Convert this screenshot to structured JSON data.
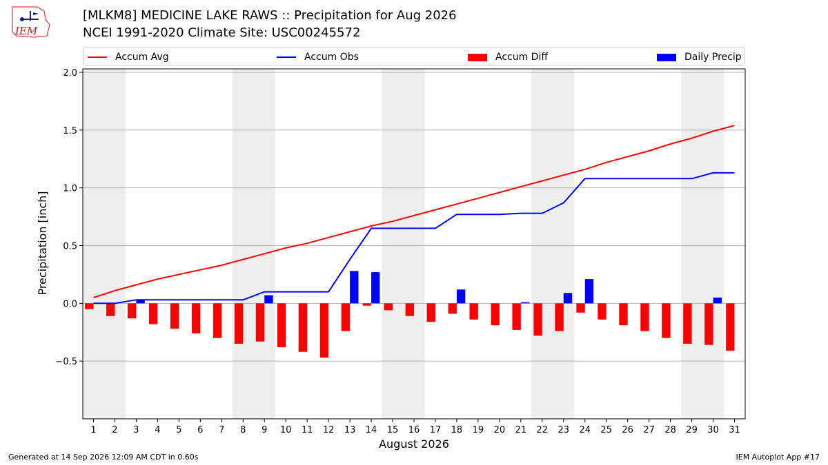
{
  "header": {
    "title_line1": "[MLKM8] MEDICINE LAKE RAWS :: Precipitation for Aug 2026",
    "title_line2": "NCEI 1991-2020 Climate Site: USC00245572",
    "logo_text": "IEM"
  },
  "footer": {
    "left": "Generated at 14 Sep 2026 12:09 AM CDT in 0.60s",
    "right": "IEM Autoplot App #17"
  },
  "colors": {
    "accum_avg": "#ff0000",
    "accum_obs": "#0000ff",
    "accum_diff": "#ff0000",
    "daily_precip": "#0000ff",
    "weekend_shade": "#eeeeee",
    "grid": "#b0b0b0"
  },
  "chart_data": {
    "type": "bar",
    "xlabel": "August 2026",
    "ylabel": "Precipitation [inch]",
    "ylim": [
      -1.0,
      2.03
    ],
    "xlim": [
      0.5,
      31.5
    ],
    "yticks": [
      -0.5,
      0.0,
      0.5,
      1.0,
      1.5,
      2.0
    ],
    "ytick_labels": [
      "−0.5",
      "0.0",
      "0.5",
      "1.0",
      "1.5",
      "2.0"
    ],
    "grid": "horizontal",
    "legend_position": "top",
    "legend": [
      "Accum Avg",
      "Accum Obs",
      "Accum Diff",
      "Daily Precip"
    ],
    "days": [
      1,
      2,
      3,
      4,
      5,
      6,
      7,
      8,
      9,
      10,
      11,
      12,
      13,
      14,
      15,
      16,
      17,
      18,
      19,
      20,
      21,
      22,
      23,
      24,
      25,
      26,
      27,
      28,
      29,
      30,
      31
    ],
    "shaded_day_ranges": [
      [
        1,
        2
      ],
      [
        8,
        9
      ],
      [
        15,
        16
      ],
      [
        22,
        23
      ],
      [
        29,
        30
      ]
    ],
    "series": [
      {
        "name": "Accum Avg",
        "kind": "line",
        "values": [
          0.05,
          0.11,
          0.16,
          0.21,
          0.25,
          0.29,
          0.33,
          0.38,
          0.43,
          0.48,
          0.52,
          0.57,
          0.62,
          0.67,
          0.71,
          0.76,
          0.81,
          0.86,
          0.91,
          0.96,
          1.01,
          1.06,
          1.11,
          1.16,
          1.22,
          1.27,
          1.32,
          1.38,
          1.43,
          1.49,
          1.54
        ]
      },
      {
        "name": "Accum Obs",
        "kind": "line",
        "values": [
          0.0,
          0.0,
          0.03,
          0.03,
          0.03,
          0.03,
          0.03,
          0.03,
          0.1,
          0.1,
          0.1,
          0.1,
          0.38,
          0.65,
          0.65,
          0.65,
          0.65,
          0.77,
          0.77,
          0.77,
          0.78,
          0.78,
          0.87,
          1.08,
          1.08,
          1.08,
          1.08,
          1.08,
          1.08,
          1.13,
          1.13
        ]
      },
      {
        "name": "Accum Diff",
        "kind": "bar",
        "values": [
          -0.05,
          -0.11,
          -0.13,
          -0.18,
          -0.22,
          -0.26,
          -0.3,
          -0.35,
          -0.33,
          -0.38,
          -0.42,
          -0.47,
          -0.24,
          -0.02,
          -0.06,
          -0.11,
          -0.16,
          -0.09,
          -0.14,
          -0.19,
          -0.23,
          -0.28,
          -0.24,
          -0.08,
          -0.14,
          -0.19,
          -0.24,
          -0.3,
          -0.35,
          -0.36,
          -0.41
        ]
      },
      {
        "name": "Daily Precip",
        "kind": "bar",
        "values": [
          0,
          0,
          0.03,
          0,
          0,
          0,
          0,
          0,
          0.07,
          0,
          0,
          0,
          0.28,
          0.27,
          0,
          0,
          0,
          0.12,
          0,
          0,
          0.01,
          0,
          0.09,
          0.21,
          0,
          0,
          0,
          0,
          0,
          0.05,
          0
        ]
      }
    ]
  }
}
